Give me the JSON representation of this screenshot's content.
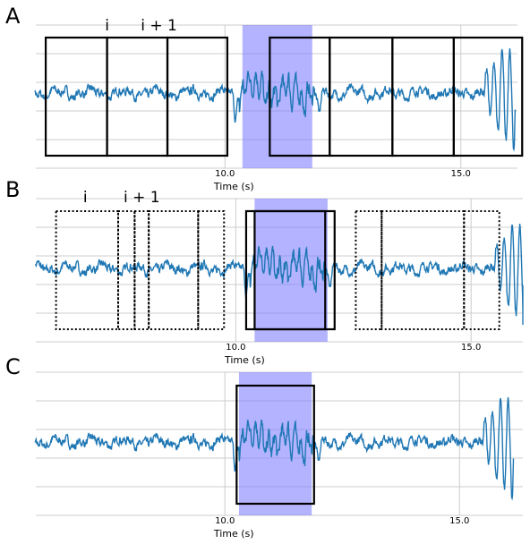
{
  "colors": {
    "signal": "#1f77b4",
    "highlight": "#8080ff",
    "grid": "#cccccc",
    "box": "#000000"
  },
  "panels": [
    {
      "letter": "A",
      "xlabel": "Time (s)",
      "ticks": [
        {
          "value": 10.0,
          "label": "10.0"
        },
        {
          "value": 15.0,
          "label": "15.0"
        }
      ],
      "highlight": {
        "start": 10.37,
        "end": 11.85
      },
      "windows": [
        {
          "start": 6.2,
          "end": 7.5,
          "style": "solid"
        },
        {
          "start": 7.5,
          "end": 8.78,
          "style": "solid"
        },
        {
          "start": 8.78,
          "end": 10.05,
          "style": "solid"
        },
        {
          "start": 10.95,
          "end": 12.22,
          "style": "solid"
        },
        {
          "start": 12.22,
          "end": 13.55,
          "style": "solid"
        },
        {
          "start": 13.55,
          "end": 14.85,
          "style": "solid"
        },
        {
          "start": 14.85,
          "end": 16.3,
          "style": "solid"
        }
      ],
      "labels": [
        {
          "text": "i",
          "at": 7.5
        },
        {
          "text": "i + 1",
          "at": 8.6
        }
      ]
    },
    {
      "letter": "B",
      "xlabel": "Time (s)",
      "ticks": [
        {
          "value": 10.0,
          "label": "10.0"
        },
        {
          "value": 15.0,
          "label": "15.0"
        }
      ],
      "highlight": {
        "start": 10.4,
        "end": 11.95
      },
      "windows": [
        {
          "start": 6.18,
          "end": 7.5,
          "style": "dotted"
        },
        {
          "start": 7.5,
          "end": 7.85,
          "style": "dotted"
        },
        {
          "start": 7.85,
          "end": 8.15,
          "style": "dotted"
        },
        {
          "start": 8.15,
          "end": 9.2,
          "style": "dotted"
        },
        {
          "start": 9.2,
          "end": 9.75,
          "style": "dotted"
        },
        {
          "start": 10.22,
          "end": 12.1,
          "style": "solid"
        },
        {
          "start": 10.4,
          "end": 11.9,
          "style": "solid"
        },
        {
          "start": 12.55,
          "end": 13.1,
          "style": "dotted"
        },
        {
          "start": 13.1,
          "end": 14.85,
          "style": "dotted"
        },
        {
          "start": 14.85,
          "end": 15.6,
          "style": "dotted"
        }
      ],
      "labels": [
        {
          "text": "i",
          "at": 6.8
        },
        {
          "text": "i + 1",
          "at": 8.0
        }
      ]
    },
    {
      "letter": "C",
      "xlabel": "Time (s)",
      "ticks": [
        {
          "value": 10.0,
          "label": "10.0"
        },
        {
          "value": 15.0,
          "label": "15.0"
        }
      ],
      "highlight": {
        "start": 10.3,
        "end": 11.85
      },
      "windows": [
        {
          "start": 10.25,
          "end": 11.9,
          "style": "solid"
        }
      ],
      "labels": []
    }
  ]
}
